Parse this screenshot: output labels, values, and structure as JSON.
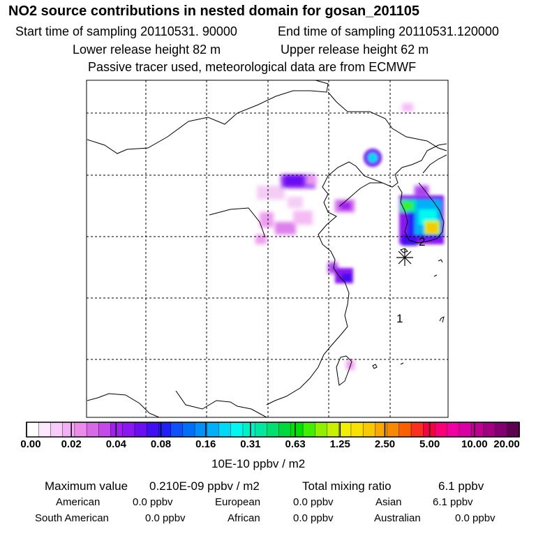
{
  "header": {
    "title": "NO2 source contributions in nested domain for gosan_201105",
    "start_time": "Start time of sampling 20110531. 90000",
    "end_time": "End time of sampling 20110531.120000",
    "lower_release": "Lower release height   82 m",
    "upper_release": "Upper release height   62 m",
    "tracer_note": "Passive tracer used, meteorological data are from ECMWF"
  },
  "map_labels": {
    "marker_1": "1",
    "marker_2": "2"
  },
  "colors": {
    "colorbar": [
      "#ffffff",
      "#fde8fd",
      "#f8ccf8",
      "#f3b0f3",
      "#eb8ceb",
      "#d86ae8",
      "#c44be8",
      "#a020f0",
      "#8a18f0",
      "#6a10f0",
      "#4010f0",
      "#2020f8",
      "#1050f8",
      "#0070f8",
      "#0090f8",
      "#00b0f8",
      "#00d8f8",
      "#00f8f0",
      "#00f0c8",
      "#00e8a0",
      "#00e070",
      "#00d840",
      "#00e000",
      "#40f000",
      "#90f000",
      "#c8f000",
      "#f0f000",
      "#f8e000",
      "#f8c800",
      "#f8a800",
      "#f88800",
      "#f86000",
      "#f83020",
      "#f80040",
      "#f80078",
      "#f000a0",
      "#d800a0",
      "#c00090",
      "#a00080",
      "#800070",
      "#600050"
    ]
  },
  "chart_data": {
    "type": "heatmap",
    "title": "NO2 source contributions in nested domain for gosan_201105",
    "colorbar_ticks": [
      "0.00",
      "0.02",
      "0.04",
      "0.08",
      "0.16",
      "0.31",
      "0.63",
      "1.25",
      "2.50",
      "5.00",
      "10.00",
      "20.00"
    ],
    "colorbar_label": "10E-10 ppbv / m2",
    "max_value_label": "Maximum value",
    "max_value": "0.210E-09 ppbv / m2",
    "total_mixing_label": "Total mixing ratio",
    "total_mixing_value": "6.1 ppbv",
    "regions": [
      {
        "name": "American",
        "value": "0.0 ppbv"
      },
      {
        "name": "European",
        "value": "0.0 ppbv"
      },
      {
        "name": "Asian",
        "value": "6.1 ppbv"
      },
      {
        "name": "South American",
        "value": "0.0 ppbv"
      },
      {
        "name": "African",
        "value": "0.0 ppbv"
      },
      {
        "name": "Australian",
        "value": "0.0 ppbv"
      }
    ]
  }
}
